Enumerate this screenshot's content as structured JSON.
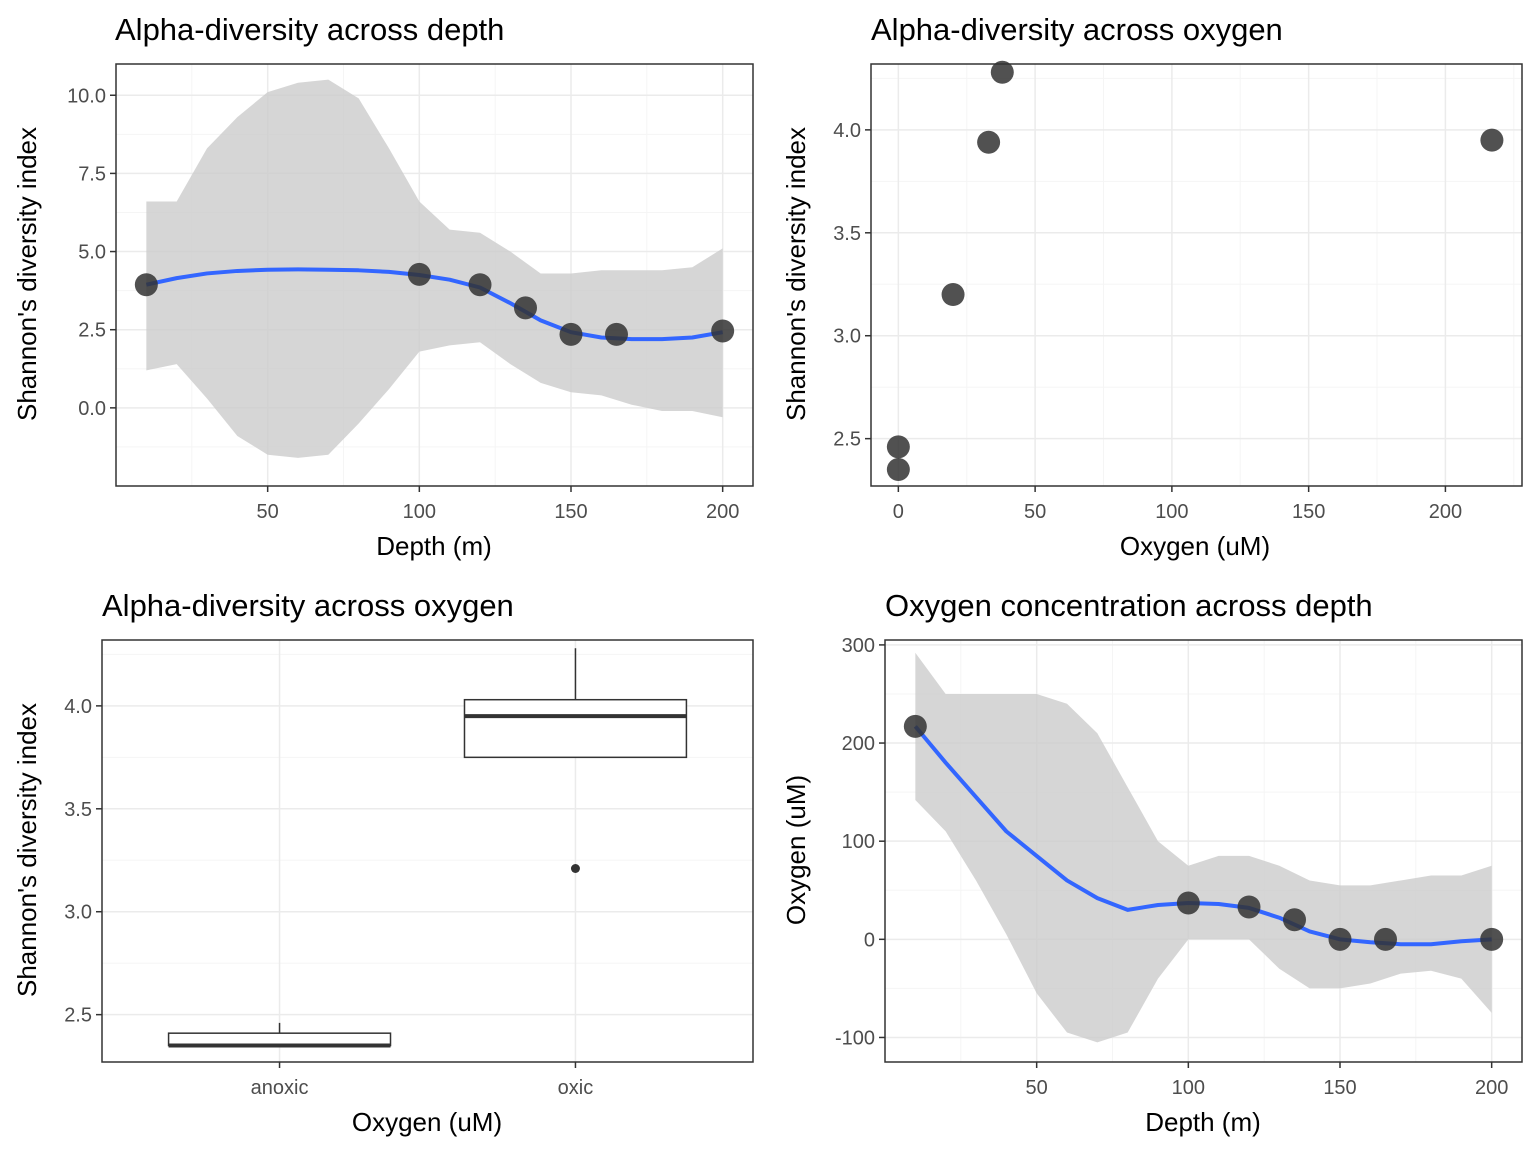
{
  "colors": {
    "background": "#ffffff",
    "panel_border": "#333333",
    "grid_major": "#ebebeb",
    "grid_minor": "#f5f5f5",
    "point": "#333333",
    "smooth_line": "#3366ff",
    "ribbon": "#cccccc",
    "tick_text": "#4d4d4d"
  },
  "chart_data": [
    {
      "type": "scatter",
      "title": "Alpha-diversity across depth",
      "xlabel": "Depth (m)",
      "ylabel": "Shannon's diversity index",
      "xlim": [
        0,
        210
      ],
      "ylim": [
        -2.5,
        11.0
      ],
      "xticks": [
        50,
        100,
        150,
        200
      ],
      "yticks": [
        0.0,
        2.5,
        5.0,
        7.5,
        10.0
      ],
      "ytick_labels": [
        "0.0",
        "2.5",
        "5.0",
        "7.5",
        "10.0"
      ],
      "grid": true,
      "points": [
        {
          "x": 10,
          "y": 3.94
        },
        {
          "x": 100,
          "y": 4.27
        },
        {
          "x": 120,
          "y": 3.94
        },
        {
          "x": 135,
          "y": 3.2
        },
        {
          "x": 150,
          "y": 2.35
        },
        {
          "x": 165,
          "y": 2.35
        },
        {
          "x": 200,
          "y": 2.46
        }
      ],
      "smooth": {
        "x": [
          10,
          20,
          30,
          40,
          50,
          60,
          70,
          80,
          90,
          100,
          110,
          120,
          130,
          140,
          150,
          160,
          170,
          180,
          190,
          200
        ],
        "y": [
          3.94,
          4.15,
          4.3,
          4.38,
          4.42,
          4.43,
          4.42,
          4.4,
          4.35,
          4.25,
          4.1,
          3.85,
          3.35,
          2.8,
          2.42,
          2.25,
          2.2,
          2.2,
          2.25,
          2.42
        ],
        "lower": [
          1.2,
          1.4,
          0.3,
          -0.9,
          -1.5,
          -1.6,
          -1.5,
          -0.5,
          0.6,
          1.8,
          2.0,
          2.1,
          1.4,
          0.8,
          0.5,
          0.4,
          0.1,
          -0.1,
          -0.1,
          -0.3
        ],
        "upper": [
          6.6,
          6.6,
          8.3,
          9.3,
          10.1,
          10.4,
          10.5,
          9.9,
          8.3,
          6.6,
          5.7,
          5.6,
          5.0,
          4.3,
          4.3,
          4.4,
          4.4,
          4.4,
          4.5,
          5.1
        ]
      }
    },
    {
      "type": "scatter",
      "title": "Alpha-diversity across oxygen",
      "xlabel": "Oxygen (uM)",
      "ylabel": "Shannon's diversity index",
      "xlim": [
        -10,
        228
      ],
      "ylim": [
        2.27,
        4.32
      ],
      "xticks": [
        0,
        50,
        100,
        150,
        200
      ],
      "yticks": [
        2.5,
        3.0,
        3.5,
        4.0
      ],
      "ytick_labels": [
        "2.5",
        "3.0",
        "3.5",
        "4.0"
      ],
      "grid": true,
      "points": [
        {
          "x": 0,
          "y": 2.35
        },
        {
          "x": 0,
          "y": 2.46
        },
        {
          "x": 20,
          "y": 3.2
        },
        {
          "x": 33,
          "y": 3.94
        },
        {
          "x": 38,
          "y": 4.28
        },
        {
          "x": 217,
          "y": 3.95
        }
      ]
    },
    {
      "type": "box",
      "title": "Alpha-diversity across oxygen",
      "xlabel": "Oxygen (uM)",
      "ylabel": "Shannon's diversity index",
      "categories": [
        "anoxic",
        "oxic"
      ],
      "ylim": [
        2.27,
        4.32
      ],
      "yticks": [
        2.5,
        3.0,
        3.5,
        4.0
      ],
      "ytick_labels": [
        "2.5",
        "3.0",
        "3.5",
        "4.0"
      ],
      "grid": true,
      "boxes": [
        {
          "category": "anoxic",
          "min": 2.35,
          "q1": 2.35,
          "median": 2.35,
          "q3": 2.41,
          "max": 2.46,
          "outliers": []
        },
        {
          "category": "oxic",
          "min": 3.75,
          "q1": 3.75,
          "median": 3.95,
          "q3": 4.03,
          "max": 4.28,
          "outliers": [
            3.21
          ]
        }
      ]
    },
    {
      "type": "scatter",
      "title": "Oxygen concentration across depth",
      "xlabel": "Depth (m)",
      "ylabel": "Oxygen  (uM)",
      "xlim": [
        0,
        210
      ],
      "ylim": [
        -125,
        305
      ],
      "xticks": [
        50,
        100,
        150,
        200
      ],
      "yticks": [
        -100,
        0,
        100,
        200,
        300
      ],
      "ytick_labels": [
        "-100",
        "0",
        "100",
        "200",
        "300"
      ],
      "grid": true,
      "points": [
        {
          "x": 10,
          "y": 217
        },
        {
          "x": 100,
          "y": 37
        },
        {
          "x": 120,
          "y": 33
        },
        {
          "x": 135,
          "y": 20
        },
        {
          "x": 150,
          "y": 0
        },
        {
          "x": 165,
          "y": 0
        },
        {
          "x": 200,
          "y": 0
        }
      ],
      "smooth": {
        "x": [
          10,
          20,
          30,
          40,
          50,
          60,
          70,
          80,
          90,
          100,
          110,
          120,
          130,
          140,
          150,
          160,
          170,
          180,
          190,
          200
        ],
        "y": [
          217,
          180,
          145,
          110,
          85,
          60,
          42,
          30,
          35,
          37,
          36,
          32,
          22,
          8,
          0,
          -3,
          -5,
          -5,
          -2,
          0
        ],
        "lower": [
          142,
          110,
          60,
          5,
          -55,
          -95,
          -105,
          -95,
          -40,
          0,
          0,
          0,
          -30,
          -50,
          -50,
          -45,
          -35,
          -32,
          -40,
          -75
        ],
        "upper": [
          292,
          250,
          250,
          250,
          250,
          240,
          210,
          155,
          100,
          75,
          85,
          85,
          75,
          60,
          55,
          55,
          60,
          65,
          65,
          75
        ]
      }
    }
  ]
}
